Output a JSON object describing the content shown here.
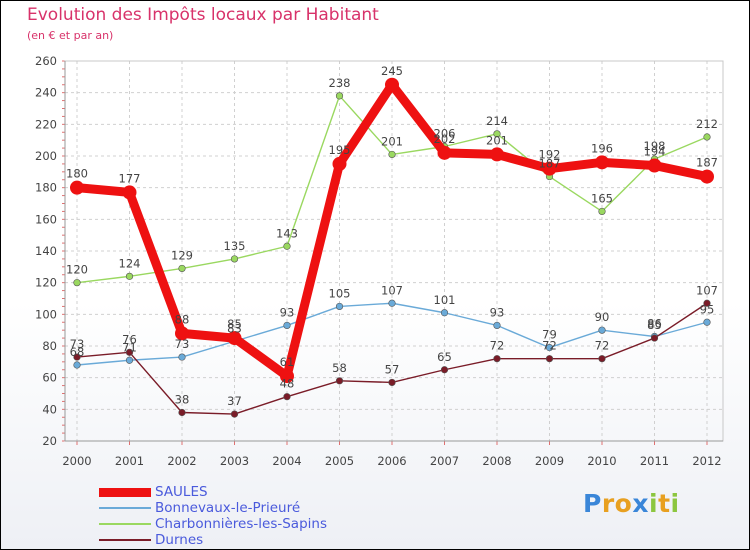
{
  "title": "Evolution des Impôts locaux par Habitant",
  "subtitle": "(en € et par an)",
  "logo": {
    "letters": [
      "P",
      "r",
      "o",
      "x",
      "i",
      "t",
      "i"
    ],
    "colors": [
      "#3a86d8",
      "#e8a020",
      "#e8a020",
      "#3a86d8",
      "#8cc63f",
      "#e8a020",
      "#8cc63f"
    ]
  },
  "chart_data": {
    "type": "line",
    "title": "Evolution des Impôts locaux par Habitant",
    "subtitle": "(en € et par an)",
    "xlabel": "",
    "ylabel": "",
    "ylim": [
      20,
      260
    ],
    "yticks": [
      20,
      40,
      60,
      80,
      100,
      120,
      140,
      160,
      180,
      200,
      220,
      240,
      260
    ],
    "grid": true,
    "categories": [
      "2000",
      "2001",
      "2002",
      "2003",
      "2004",
      "2005",
      "2006",
      "2007",
      "2008",
      "2009",
      "2010",
      "2011",
      "2012"
    ],
    "series": [
      {
        "name": "SAULES",
        "color": "#ee1111",
        "highlight": true,
        "values": [
          180,
          177,
          88,
          85,
          61,
          195,
          245,
          202,
          201,
          192,
          196,
          194,
          187
        ]
      },
      {
        "name": "Bonnevaux-le-Prieuré",
        "color": "#6aaad8",
        "highlight": false,
        "values": [
          68,
          71,
          73,
          83,
          93,
          105,
          107,
          101,
          93,
          79,
          90,
          86,
          95
        ]
      },
      {
        "name": "Charbonnières-les-Sapins",
        "color": "#9ad860",
        "highlight": false,
        "values": [
          120,
          124,
          129,
          135,
          143,
          238,
          201,
          206,
          214,
          187,
          165,
          198,
          212
        ]
      },
      {
        "name": "Durnes",
        "color": "#7a1c28",
        "highlight": false,
        "values": [
          73,
          76,
          38,
          37,
          48,
          58,
          57,
          65,
          72,
          72,
          72,
          85,
          107
        ]
      }
    ]
  }
}
